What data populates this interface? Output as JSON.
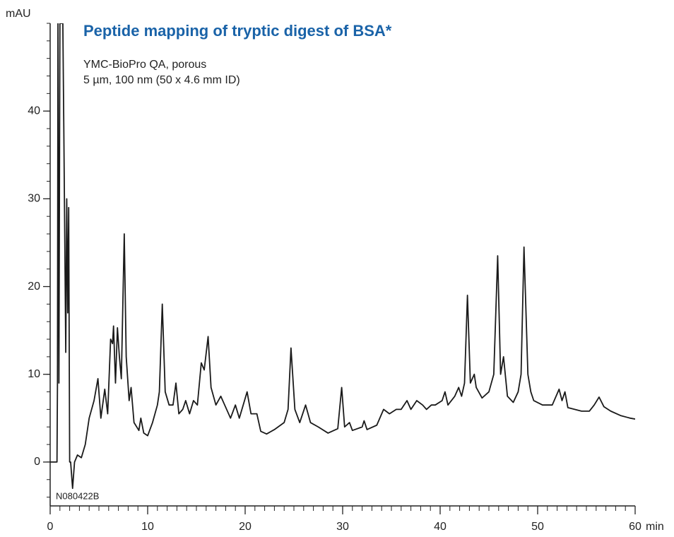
{
  "chart_data": {
    "type": "line",
    "title": "Peptide mapping of tryptic digest of BSA*",
    "subtitle": [
      "YMC-BioPro QA, porous",
      "5 µm, 100 nm (50 x 4.6 mm ID)"
    ],
    "annotation": "N080422B",
    "x_label": "min",
    "y_label": "mAU",
    "xlim": [
      0,
      60
    ],
    "ylim": [
      -5,
      50
    ],
    "xticks": [
      0,
      10,
      20,
      30,
      40,
      50,
      60
    ],
    "yticks": [
      0,
      10,
      20,
      30,
      40
    ],
    "color": "#1a1a1a",
    "x": [
      0,
      0.7,
      0.75,
      0.8,
      0.9,
      1.0,
      1.3,
      1.4,
      1.6,
      1.7,
      1.8,
      1.9,
      2.0,
      2.1,
      2.3,
      2.5,
      2.8,
      3.2,
      3.6,
      4.0,
      4.5,
      4.9,
      5.2,
      5.6,
      5.9,
      6.2,
      6.4,
      6.5,
      6.7,
      6.9,
      7.1,
      7.3,
      7.6,
      7.8,
      8.1,
      8.3,
      8.6,
      9.1,
      9.3,
      9.6,
      10,
      10.5,
      11,
      11.2,
      11.5,
      11.8,
      12.2,
      12.6,
      12.9,
      13.2,
      13.6,
      13.9,
      14.3,
      14.7,
      15.1,
      15.5,
      15.8,
      16.2,
      16.5,
      17,
      17.5,
      17.9,
      18.5,
      19,
      19.4,
      20.2,
      20.6,
      21.2,
      21.6,
      22.2,
      23,
      24,
      24.4,
      24.7,
      25.1,
      25.6,
      26.2,
      26.7,
      27.5,
      28.5,
      29.5,
      29.9,
      30.2,
      30.7,
      31,
      32,
      32.2,
      32.5,
      33.5,
      34.2,
      34.8,
      35.5,
      36,
      36.6,
      37,
      37.6,
      38.2,
      38.6,
      39.1,
      39.5,
      40.2,
      40.5,
      40.8,
      41.5,
      41.9,
      42.2,
      42.5,
      42.8,
      43.1,
      43.5,
      43.7,
      44.3,
      45.0,
      45.5,
      45.9,
      46.2,
      46.5,
      46.9,
      47.5,
      48.0,
      48.3,
      48.6,
      49.0,
      49.3,
      49.6,
      50.5,
      51.5,
      52.2,
      52.5,
      52.8,
      53.1,
      53.8,
      54.5,
      55.3,
      55.8,
      56.3,
      56.8,
      57.5,
      58.5,
      59.5,
      60
    ],
    "y": [
      0,
      0,
      9,
      50,
      9,
      50,
      50,
      38,
      12.5,
      30,
      17,
      29,
      0,
      0,
      -3,
      0,
      0.8,
      0.5,
      2,
      5,
      7,
      9.5,
      5,
      8.3,
      5.5,
      14,
      13.5,
      15.5,
      9,
      15.3,
      12,
      9.5,
      26,
      12,
      7,
      8.5,
      4.5,
      3.6,
      5,
      3.3,
      3,
      4.5,
      6.5,
      8,
      18,
      8,
      6.5,
      6.5,
      9,
      5.5,
      6,
      7,
      5.5,
      7,
      6.5,
      11.3,
      10.5,
      14.3,
      8.5,
      6.5,
      7.5,
      6.5,
      5,
      6.5,
      5,
      8,
      5.5,
      5.5,
      3.5,
      3.2,
      3.7,
      4.5,
      6,
      13,
      6,
      4.5,
      6.5,
      4.5,
      4,
      3.3,
      3.8,
      8.5,
      4,
      4.5,
      3.6,
      4,
      4.7,
      3.7,
      4.2,
      6,
      5.5,
      6,
      6,
      7,
      6,
      7,
      6.5,
      6,
      6.5,
      6.5,
      7,
      8,
      6.5,
      7.5,
      8.5,
      7.5,
      9,
      19,
      9,
      10,
      8.5,
      7.3,
      8,
      10,
      23.5,
      10,
      12,
      7.5,
      6.8,
      8,
      10,
      24.5,
      10,
      8,
      7,
      6.5,
      6.5,
      8.3,
      7,
      8,
      6.2,
      6,
      5.8,
      5.8,
      6.5,
      7.4,
      6.3,
      5.8,
      5.3,
      5,
      4.9
    ]
  }
}
